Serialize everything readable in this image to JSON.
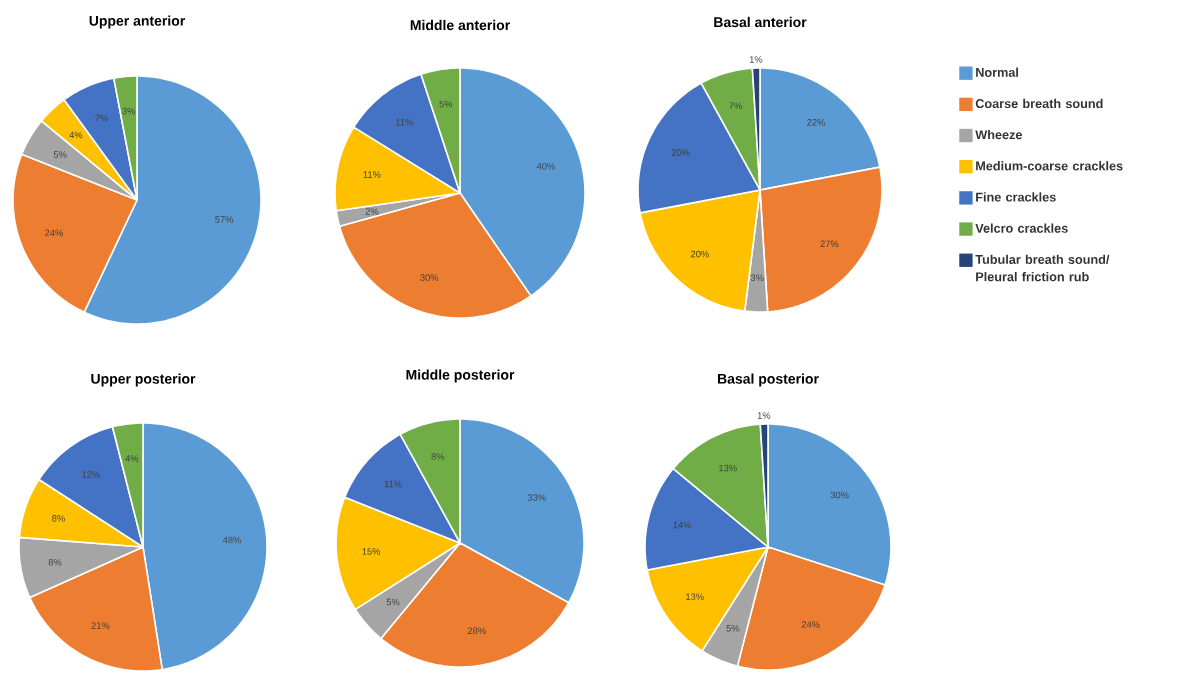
{
  "chart_data": [
    {
      "type": "pie",
      "title": "Upper anterior",
      "legend": "right",
      "categories": [
        "Normal",
        "Coarse breath sound",
        "Wheeze",
        "Medium-coarse crackles",
        "Fine crackles",
        "Velcro crackles",
        "Tubular breath sound/ Pleural friction rub"
      ],
      "colors": [
        "#5b9bd5",
        "#ed7d31",
        "#a5a5a5",
        "#ffc000",
        "#4472c4",
        "#70ad47",
        "#264478"
      ],
      "values": [
        57,
        24,
        5,
        4,
        7,
        3,
        0
      ],
      "value_labels": [
        "57%",
        "24%",
        "5%",
        "4%",
        "7%",
        "3%",
        null
      ]
    },
    {
      "type": "pie",
      "title": "Middle anterior",
      "categories": [
        null,
        null,
        null,
        null,
        null,
        null,
        null
      ],
      "colors": [
        "#5b9bd5",
        "#ed7d31",
        "#a5a5a5",
        "#ffc000",
        "#4472c4",
        "#70ad47",
        "#264478"
      ],
      "values": [
        40,
        30,
        2,
        11,
        11,
        5,
        0
      ],
      "value_labels": [
        "40%",
        "30%",
        "2%",
        "11%",
        "11%",
        "5%",
        null
      ]
    },
    {
      "type": "pie",
      "title": "Basal anterior",
      "categories": [
        null,
        null,
        null,
        null,
        null,
        null,
        null
      ],
      "colors": [
        "#5b9bd5",
        "#ed7d31",
        "#a5a5a5",
        "#ffc000",
        "#4472c4",
        "#70ad47",
        "#264478"
      ],
      "values": [
        22,
        27,
        3,
        20,
        20,
        7,
        1
      ],
      "value_labels": [
        "22%",
        "27%",
        "3%",
        "20%",
        "20%",
        "7%",
        "1%"
      ]
    },
    {
      "type": "pie",
      "title": "Upper posterior",
      "categories": [
        null,
        null,
        null,
        null,
        null,
        null,
        null
      ],
      "colors": [
        "#5b9bd5",
        "#ed7d31",
        "#a5a5a5",
        "#ffc000",
        "#4472c4",
        "#70ad47",
        "#264478"
      ],
      "values": [
        48,
        21,
        8,
        8,
        12,
        4,
        0
      ],
      "value_labels": [
        "48%",
        "21%",
        "8%",
        "8%",
        "12%",
        "4%",
        null
      ]
    },
    {
      "type": "pie",
      "title": "Middle posterior",
      "categories": [
        null,
        null,
        null,
        null,
        null,
        null,
        null
      ],
      "colors": [
        "#5b9bd5",
        "#ed7d31",
        "#a5a5a5",
        "#ffc000",
        "#4472c4",
        "#70ad47",
        "#264478"
      ],
      "values": [
        33,
        28,
        5,
        15,
        11,
        8,
        0
      ],
      "value_labels": [
        "33%",
        "28%",
        "5%",
        "15%",
        "11%",
        "8%",
        null
      ]
    },
    {
      "type": "pie",
      "title": "Basal posterior",
      "categories": [
        null,
        null,
        null,
        null,
        null,
        null,
        null
      ],
      "colors": [
        "#5b9bd5",
        "#ed7d31",
        "#a5a5a5",
        "#ffc000",
        "#4472c4",
        "#70ad47",
        "#264478"
      ],
      "values": [
        30,
        24,
        5,
        13,
        14,
        13,
        1
      ],
      "value_labels": [
        "30%",
        "24%",
        "5%",
        "13%",
        "14%",
        "13%",
        "1%"
      ]
    }
  ]
}
